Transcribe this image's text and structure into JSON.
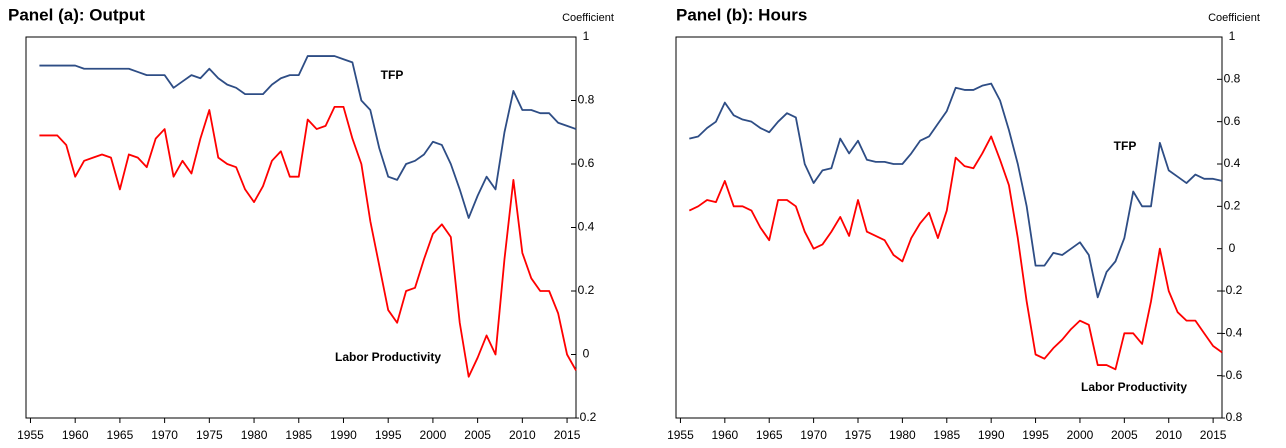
{
  "chart_data": [
    {
      "type": "line",
      "title": "Panel (a): Output",
      "y_label": "Coefficient",
      "x": [
        1956,
        1957,
        1958,
        1959,
        1960,
        1961,
        1962,
        1963,
        1964,
        1965,
        1966,
        1967,
        1968,
        1969,
        1970,
        1971,
        1972,
        1973,
        1974,
        1975,
        1976,
        1977,
        1978,
        1979,
        1980,
        1981,
        1982,
        1983,
        1984,
        1985,
        1986,
        1987,
        1988,
        1989,
        1990,
        1991,
        1992,
        1993,
        1994,
        1995,
        1996,
        1997,
        1998,
        1999,
        2000,
        2001,
        2002,
        2003,
        2004,
        2005,
        2006,
        2007,
        2008,
        2009,
        2010,
        2011,
        2012,
        2013,
        2014,
        2015,
        2016
      ],
      "xlim": [
        1954.5,
        2016
      ],
      "xticks": [
        1955,
        1960,
        1965,
        1970,
        1975,
        1980,
        1985,
        1990,
        1995,
        2000,
        2005,
        2010,
        2015
      ],
      "ylim": [
        -0.2,
        1
      ],
      "yticks": [
        -0.2,
        0,
        0.2,
        0.4,
        0.6,
        0.8,
        1
      ],
      "series": [
        {
          "name": "TFP",
          "color": "#2e4d85",
          "values": [
            0.91,
            0.91,
            0.91,
            0.91,
            0.91,
            0.9,
            0.9,
            0.9,
            0.9,
            0.9,
            0.9,
            0.89,
            0.88,
            0.88,
            0.88,
            0.84,
            0.86,
            0.88,
            0.87,
            0.9,
            0.87,
            0.85,
            0.84,
            0.82,
            0.82,
            0.82,
            0.85,
            0.87,
            0.88,
            0.88,
            0.94,
            0.94,
            0.94,
            0.94,
            0.93,
            0.92,
            0.8,
            0.77,
            0.65,
            0.56,
            0.55,
            0.6,
            0.61,
            0.63,
            0.67,
            0.66,
            0.6,
            0.52,
            0.43,
            0.5,
            0.56,
            0.52,
            0.7,
            0.83,
            0.77,
            0.77,
            0.76,
            0.76,
            0.73,
            0.72,
            0.71
          ]
        },
        {
          "name": "Labor Productivity",
          "color": "#ff0000",
          "values": [
            0.69,
            0.69,
            0.69,
            0.66,
            0.56,
            0.61,
            0.62,
            0.63,
            0.62,
            0.52,
            0.63,
            0.62,
            0.59,
            0.68,
            0.71,
            0.56,
            0.61,
            0.57,
            0.68,
            0.77,
            0.62,
            0.6,
            0.59,
            0.52,
            0.48,
            0.53,
            0.61,
            0.64,
            0.56,
            0.56,
            0.74,
            0.71,
            0.72,
            0.78,
            0.78,
            0.68,
            0.6,
            0.42,
            0.28,
            0.14,
            0.1,
            0.2,
            0.21,
            0.3,
            0.38,
            0.41,
            0.37,
            0.1,
            -0.07,
            -0.01,
            0.06,
            0.0,
            0.3,
            0.55,
            0.32,
            0.24,
            0.2,
            0.2,
            0.13,
            0.0,
            -0.05
          ]
        }
      ]
    },
    {
      "type": "line",
      "title": "Panel (b): Hours",
      "y_label": "Coefficient",
      "x": [
        1956,
        1957,
        1958,
        1959,
        1960,
        1961,
        1962,
        1963,
        1964,
        1965,
        1966,
        1967,
        1968,
        1969,
        1970,
        1971,
        1972,
        1973,
        1974,
        1975,
        1976,
        1977,
        1978,
        1979,
        1980,
        1981,
        1982,
        1983,
        1984,
        1985,
        1986,
        1987,
        1988,
        1989,
        1990,
        1991,
        1992,
        1993,
        1994,
        1995,
        1996,
        1997,
        1998,
        1999,
        2000,
        2001,
        2002,
        2003,
        2004,
        2005,
        2006,
        2007,
        2008,
        2009,
        2010,
        2011,
        2012,
        2013,
        2014,
        2015,
        2016
      ],
      "xlim": [
        1954.5,
        2016
      ],
      "xticks": [
        1955,
        1960,
        1965,
        1970,
        1975,
        1980,
        1985,
        1990,
        1995,
        2000,
        2005,
        2010,
        2015
      ],
      "ylim": [
        -0.8,
        1
      ],
      "yticks": [
        -0.8,
        -0.6,
        -0.4,
        -0.2,
        0,
        0.2,
        0.4,
        0.6,
        0.8,
        1
      ],
      "series": [
        {
          "name": "TFP",
          "color": "#2e4d85",
          "values": [
            0.52,
            0.53,
            0.57,
            0.6,
            0.69,
            0.63,
            0.61,
            0.6,
            0.57,
            0.55,
            0.6,
            0.64,
            0.62,
            0.4,
            0.31,
            0.37,
            0.38,
            0.52,
            0.45,
            0.51,
            0.42,
            0.41,
            0.41,
            0.4,
            0.4,
            0.45,
            0.51,
            0.53,
            0.59,
            0.65,
            0.76,
            0.75,
            0.75,
            0.77,
            0.78,
            0.7,
            0.56,
            0.4,
            0.2,
            -0.08,
            -0.08,
            -0.02,
            -0.03,
            0.0,
            0.03,
            -0.03,
            -0.23,
            -0.11,
            -0.06,
            0.05,
            0.27,
            0.2,
            0.2,
            0.5,
            0.37,
            0.34,
            0.31,
            0.35,
            0.33,
            0.33,
            0.32
          ]
        },
        {
          "name": "Labor Productivity",
          "color": "#ff0000",
          "values": [
            0.18,
            0.2,
            0.23,
            0.22,
            0.32,
            0.2,
            0.2,
            0.18,
            0.1,
            0.04,
            0.23,
            0.23,
            0.2,
            0.08,
            0.0,
            0.02,
            0.08,
            0.15,
            0.06,
            0.23,
            0.08,
            0.06,
            0.04,
            -0.03,
            -0.06,
            0.05,
            0.12,
            0.17,
            0.05,
            0.18,
            0.43,
            0.39,
            0.38,
            0.45,
            0.53,
            0.42,
            0.3,
            0.05,
            -0.25,
            -0.5,
            -0.52,
            -0.47,
            -0.43,
            -0.38,
            -0.34,
            -0.36,
            -0.55,
            -0.55,
            -0.57,
            -0.4,
            -0.4,
            -0.45,
            -0.25,
            0.0,
            -0.2,
            -0.3,
            -0.34,
            -0.34,
            -0.4,
            -0.46,
            -0.49
          ]
        }
      ]
    }
  ]
}
